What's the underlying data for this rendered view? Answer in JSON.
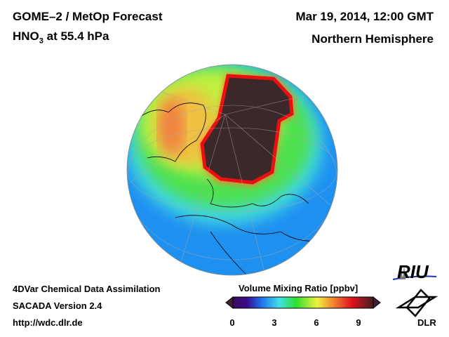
{
  "header": {
    "title": "GOME–2 / MetOp Forecast",
    "species": "HNO",
    "species_sub": "3",
    "level": " at 55.4 hPa",
    "date": "Mar 19, 2014, 12:00 GMT",
    "region": "Northern Hemisphere"
  },
  "footer": {
    "line1": "4DVar Chemical Data Assimilation",
    "line2": "SACADA Version 2.4",
    "line3": "http://wdc.dlr.de"
  },
  "colorbar": {
    "title": "Volume Mixing Ratio [ppbv]",
    "ticks": [
      "0",
      "3",
      "6",
      "9"
    ],
    "range": [
      0,
      10
    ],
    "colors": [
      "#3a0a5a",
      "#1f4fe0",
      "#2aa8f0",
      "#40e8e0",
      "#30e030",
      "#f0f040",
      "#f08030",
      "#e01020",
      "#402020"
    ]
  },
  "logos": {
    "riu": "RIU",
    "dlr": "DLR"
  }
}
